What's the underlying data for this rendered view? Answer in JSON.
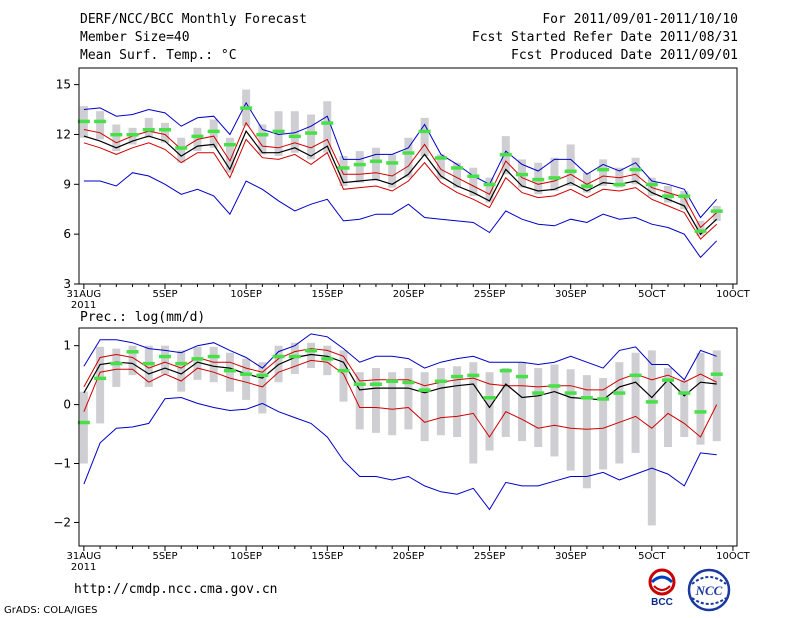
{
  "header": {
    "title": "DERF/NCC/BCC Monthly Forecast",
    "member_size": "Member Size=40",
    "variable": "Mean Surf. Temp.: °C",
    "period": "For 2011/09/01-2011/10/10",
    "started": "Fcst Started Refer Date 2011/08/31",
    "produced": "Fcst Produced Date 2011/09/01"
  },
  "footer": {
    "url": "http://cmdp.ncc.cma.gov.cn",
    "credit": "GrADS: COLA/IGES",
    "logo_bcc": "BCC",
    "logo_ncc": "NCC"
  },
  "colors": {
    "box": "#cfcfd3",
    "median": "#48e048",
    "max_min": "#0000c8",
    "spread": "#d00000",
    "mean": "#000000"
  },
  "chart_data": [
    {
      "type": "line",
      "title": "",
      "ylabel": "°C",
      "ylim": [
        3,
        16
      ],
      "yticks": [
        3,
        6,
        9,
        12,
        15
      ],
      "x": [
        0,
        1,
        2,
        3,
        4,
        5,
        6,
        7,
        8,
        9,
        10,
        11,
        12,
        13,
        14,
        15,
        16,
        17,
        18,
        19,
        20,
        21,
        22,
        23,
        24,
        25,
        26,
        27,
        28,
        29,
        30,
        31,
        32,
        33,
        34,
        35,
        36,
        37,
        38,
        39
      ],
      "xticks": [
        {
          "x": 0,
          "label": "31AUG",
          "sub": "2011"
        },
        {
          "x": 5,
          "label": "5SEP"
        },
        {
          "x": 10,
          "label": "10SEP"
        },
        {
          "x": 15,
          "label": "15SEP"
        },
        {
          "x": 20,
          "label": "20SEP"
        },
        {
          "x": 25,
          "label": "25SEP"
        },
        {
          "x": 30,
          "label": "30SEP"
        },
        {
          "x": 35,
          "label": "5OCT"
        },
        {
          "x": 40,
          "label": "10OCT"
        }
      ],
      "series": [
        {
          "name": "max",
          "values": [
            13.5,
            13.6,
            13.1,
            13.2,
            13.5,
            13.3,
            12.5,
            13.0,
            13.1,
            12.0,
            13.9,
            12.3,
            12.0,
            12.1,
            12.5,
            13.1,
            10.5,
            10.5,
            10.8,
            10.8,
            11.2,
            12.6,
            10.8,
            10.2,
            9.5,
            9.0,
            11.0,
            10.2,
            9.8,
            10.5,
            10.5,
            9.6,
            10.2,
            9.8,
            10.3,
            9.2,
            9.0,
            8.7,
            7.0,
            8.1
          ]
        },
        {
          "name": "spread_upper",
          "values": [
            12.3,
            12.1,
            11.5,
            11.9,
            12.2,
            12.0,
            11.1,
            11.7,
            11.9,
            10.4,
            12.7,
            11.3,
            11.2,
            11.5,
            11.2,
            11.7,
            9.6,
            9.6,
            9.7,
            9.5,
            10.1,
            11.4,
            9.9,
            9.4,
            8.9,
            8.4,
            10.4,
            9.4,
            9.0,
            9.2,
            9.6,
            9.0,
            9.5,
            9.4,
            9.6,
            8.8,
            8.5,
            8.2,
            6.4,
            7.3
          ]
        },
        {
          "name": "mean",
          "values": [
            11.9,
            11.6,
            11.2,
            11.6,
            11.9,
            11.6,
            10.7,
            11.3,
            11.4,
            9.9,
            12.2,
            10.9,
            10.9,
            11.2,
            10.7,
            11.3,
            9.1,
            9.2,
            9.3,
            9.0,
            9.6,
            10.8,
            9.5,
            8.9,
            8.5,
            8.0,
            9.9,
            8.9,
            8.6,
            8.7,
            9.1,
            8.6,
            9.1,
            9.0,
            9.2,
            8.5,
            8.1,
            7.7,
            6.0,
            6.9
          ]
        },
        {
          "name": "spread_lower",
          "values": [
            11.5,
            11.2,
            10.8,
            11.2,
            11.5,
            11.1,
            10.3,
            10.9,
            10.9,
            9.4,
            11.7,
            10.6,
            10.5,
            10.8,
            10.2,
            10.9,
            8.7,
            8.8,
            8.9,
            8.6,
            9.2,
            10.3,
            9.1,
            8.5,
            8.1,
            7.6,
            9.4,
            8.5,
            8.2,
            8.3,
            8.7,
            8.2,
            8.7,
            8.6,
            8.8,
            8.1,
            7.7,
            7.3,
            5.7,
            6.6
          ]
        },
        {
          "name": "min",
          "values": [
            9.2,
            9.2,
            8.9,
            9.7,
            9.5,
            9.0,
            8.4,
            8.7,
            8.3,
            7.2,
            9.2,
            8.7,
            8.0,
            7.4,
            7.8,
            8.1,
            6.8,
            6.9,
            7.2,
            7.2,
            7.8,
            7.0,
            6.9,
            6.8,
            6.7,
            6.1,
            7.4,
            6.9,
            6.6,
            6.5,
            6.9,
            6.7,
            7.2,
            6.9,
            7.0,
            6.6,
            6.4,
            6.0,
            4.6,
            5.6
          ]
        },
        {
          "name": "median",
          "values": [
            12.8,
            12.8,
            12.0,
            12.0,
            12.3,
            12.3,
            11.2,
            11.9,
            12.2,
            11.4,
            13.6,
            12.0,
            12.2,
            11.9,
            12.1,
            12.7,
            10.0,
            10.2,
            10.4,
            10.3,
            10.9,
            12.2,
            10.6,
            10.0,
            9.5,
            9.0,
            10.8,
            9.6,
            9.3,
            9.4,
            9.8,
            8.9,
            9.9,
            9.0,
            9.9,
            9.0,
            8.3,
            8.3,
            6.2,
            7.4
          ]
        }
      ],
      "box_ranges": [
        [
          11.8,
          13.7
        ],
        [
          11.7,
          13.4
        ],
        [
          11.0,
          12.6
        ],
        [
          11.4,
          12.4
        ],
        [
          11.8,
          13.0
        ],
        [
          11.5,
          12.7
        ],
        [
          10.3,
          11.8
        ],
        [
          11.0,
          12.4
        ],
        [
          11.2,
          12.9
        ],
        [
          9.7,
          11.8
        ],
        [
          12.5,
          14.7
        ],
        [
          10.8,
          12.6
        ],
        [
          10.7,
          13.4
        ],
        [
          10.9,
          13.4
        ],
        [
          10.5,
          13.2
        ],
        [
          10.9,
          14.0
        ],
        [
          8.9,
          10.7
        ],
        [
          9.1,
          11.0
        ],
        [
          9.2,
          11.2
        ],
        [
          8.8,
          10.8
        ],
        [
          9.4,
          11.8
        ],
        [
          10.7,
          13.0
        ],
        [
          9.3,
          10.8
        ],
        [
          8.8,
          10.3
        ],
        [
          8.3,
          10.0
        ],
        [
          7.9,
          9.4
        ],
        [
          9.6,
          11.9
        ],
        [
          8.8,
          10.5
        ],
        [
          8.4,
          10.3
        ],
        [
          8.6,
          10.6
        ],
        [
          8.9,
          11.4
        ],
        [
          8.5,
          9.7
        ],
        [
          8.9,
          10.5
        ],
        [
          8.8,
          10.0
        ],
        [
          9.0,
          10.6
        ],
        [
          8.3,
          9.4
        ],
        [
          7.9,
          8.9
        ],
        [
          7.5,
          8.6
        ],
        [
          5.9,
          6.8
        ],
        [
          6.8,
          7.7
        ]
      ]
    },
    {
      "type": "line",
      "title": "Prec.: log(mm/d)",
      "ylabel": "log(mm/d)",
      "ylim": [
        -2.4,
        1.3
      ],
      "yticks": [
        -2,
        -1,
        0,
        1
      ],
      "x": [
        0,
        1,
        2,
        3,
        4,
        5,
        6,
        7,
        8,
        9,
        10,
        11,
        12,
        13,
        14,
        15,
        16,
        17,
        18,
        19,
        20,
        21,
        22,
        23,
        24,
        25,
        26,
        27,
        28,
        29,
        30,
        31,
        32,
        33,
        34,
        35,
        36,
        37,
        38,
        39
      ],
      "xticks": [
        {
          "x": 0,
          "label": "31AUG",
          "sub": "2011"
        },
        {
          "x": 5,
          "label": "5SEP"
        },
        {
          "x": 10,
          "label": "10SEP"
        },
        {
          "x": 15,
          "label": "15SEP"
        },
        {
          "x": 20,
          "label": "20SEP"
        },
        {
          "x": 25,
          "label": "25SEP"
        },
        {
          "x": 30,
          "label": "30SEP"
        },
        {
          "x": 35,
          "label": "5OCT"
        },
        {
          "x": 40,
          "label": "10OCT"
        }
      ],
      "series": [
        {
          "name": "max",
          "values": [
            0.65,
            1.1,
            1.1,
            1.05,
            0.95,
            0.92,
            0.88,
            1.0,
            1.05,
            0.92,
            0.8,
            0.62,
            0.9,
            1.0,
            1.2,
            1.15,
            0.95,
            0.72,
            0.82,
            0.82,
            0.78,
            0.62,
            0.72,
            0.78,
            0.82,
            0.72,
            0.72,
            0.72,
            0.68,
            0.72,
            0.82,
            0.72,
            0.62,
            0.92,
            0.98,
            0.68,
            0.68,
            0.42,
            0.92,
            0.82
          ]
        },
        {
          "name": "spread_upper",
          "values": [
            0.3,
            0.8,
            0.85,
            0.8,
            0.62,
            0.72,
            0.62,
            0.8,
            0.72,
            0.72,
            0.62,
            0.55,
            0.78,
            0.9,
            0.95,
            0.92,
            0.82,
            0.4,
            0.42,
            0.42,
            0.42,
            0.32,
            0.38,
            0.42,
            0.45,
            0.35,
            0.32,
            0.32,
            0.3,
            0.32,
            0.32,
            0.25,
            0.25,
            0.42,
            0.52,
            0.42,
            0.5,
            0.38,
            0.52,
            0.38
          ]
        },
        {
          "name": "mean",
          "values": [
            0.2,
            0.68,
            0.72,
            0.7,
            0.52,
            0.62,
            0.52,
            0.72,
            0.65,
            0.62,
            0.52,
            0.45,
            0.68,
            0.8,
            0.85,
            0.82,
            0.72,
            0.25,
            0.28,
            0.28,
            0.28,
            0.2,
            0.28,
            0.32,
            0.35,
            -0.05,
            0.35,
            0.12,
            0.15,
            0.22,
            0.12,
            0.1,
            0.08,
            0.3,
            0.38,
            0.12,
            0.42,
            0.15,
            0.38,
            0.35
          ]
        },
        {
          "name": "spread_lower",
          "values": [
            -0.12,
            0.55,
            0.6,
            0.6,
            0.38,
            0.52,
            0.4,
            0.62,
            0.55,
            0.45,
            0.38,
            0.3,
            0.55,
            0.65,
            0.75,
            0.72,
            0.52,
            -0.05,
            -0.05,
            -0.08,
            -0.05,
            -0.3,
            -0.22,
            -0.2,
            -0.15,
            -0.55,
            -0.12,
            -0.25,
            -0.4,
            -0.35,
            -0.4,
            -0.42,
            -0.4,
            -0.3,
            -0.2,
            -0.4,
            -0.15,
            -0.32,
            -0.55,
            0.0
          ]
        },
        {
          "name": "min",
          "values": [
            -1.35,
            -0.65,
            -0.4,
            -0.38,
            -0.32,
            0.1,
            0.12,
            0.02,
            -0.05,
            -0.1,
            -0.08,
            0.02,
            -0.12,
            -0.22,
            -0.32,
            -0.55,
            -0.95,
            -1.22,
            -1.22,
            -1.28,
            -1.22,
            -1.38,
            -1.48,
            -1.52,
            -1.42,
            -1.78,
            -1.32,
            -1.38,
            -1.38,
            -1.3,
            -1.22,
            -1.22,
            -1.15,
            -1.28,
            -1.18,
            -1.08,
            -1.18,
            -1.38,
            -0.82,
            -0.85
          ]
        },
        {
          "name": "median",
          "values": [
            -0.3,
            0.45,
            0.7,
            0.9,
            0.7,
            0.82,
            0.7,
            0.78,
            0.82,
            0.58,
            0.52,
            0.5,
            0.82,
            0.82,
            0.92,
            0.78,
            0.58,
            0.35,
            0.35,
            0.4,
            0.38,
            0.25,
            0.4,
            0.48,
            0.5,
            0.12,
            0.58,
            0.48,
            0.2,
            0.32,
            0.2,
            0.12,
            0.1,
            0.2,
            0.5,
            0.05,
            0.42,
            0.2,
            -0.12,
            0.52
          ]
        }
      ],
      "box_ranges": [
        [
          -1.0,
          0.22
        ],
        [
          -0.32,
          0.98
        ],
        [
          0.3,
          0.95
        ],
        [
          0.5,
          1.0
        ],
        [
          0.3,
          1.0
        ],
        [
          0.52,
          1.0
        ],
        [
          0.22,
          0.92
        ],
        [
          0.42,
          0.98
        ],
        [
          0.38,
          0.98
        ],
        [
          0.22,
          0.88
        ],
        [
          0.08,
          0.78
        ],
        [
          -0.15,
          0.72
        ],
        [
          0.38,
          1.0
        ],
        [
          0.52,
          1.05
        ],
        [
          0.62,
          1.05
        ],
        [
          0.5,
          1.0
        ],
        [
          0.05,
          0.92
        ],
        [
          -0.42,
          0.55
        ],
        [
          -0.48,
          0.62
        ],
        [
          -0.52,
          0.55
        ],
        [
          -0.42,
          0.62
        ],
        [
          -0.62,
          0.55
        ],
        [
          -0.52,
          0.62
        ],
        [
          -0.55,
          0.65
        ],
        [
          -1.0,
          0.72
        ],
        [
          -0.78,
          0.55
        ],
        [
          -0.55,
          0.62
        ],
        [
          -0.62,
          0.72
        ],
        [
          -0.72,
          0.62
        ],
        [
          -0.88,
          0.68
        ],
        [
          -1.12,
          0.6
        ],
        [
          -1.42,
          0.5
        ],
        [
          -1.1,
          0.45
        ],
        [
          -1.0,
          0.72
        ],
        [
          -0.82,
          0.88
        ],
        [
          -2.05,
          0.92
        ],
        [
          -0.72,
          0.62
        ],
        [
          -0.55,
          0.42
        ],
        [
          -0.68,
          0.88
        ],
        [
          -0.62,
          0.92
        ]
      ]
    }
  ]
}
